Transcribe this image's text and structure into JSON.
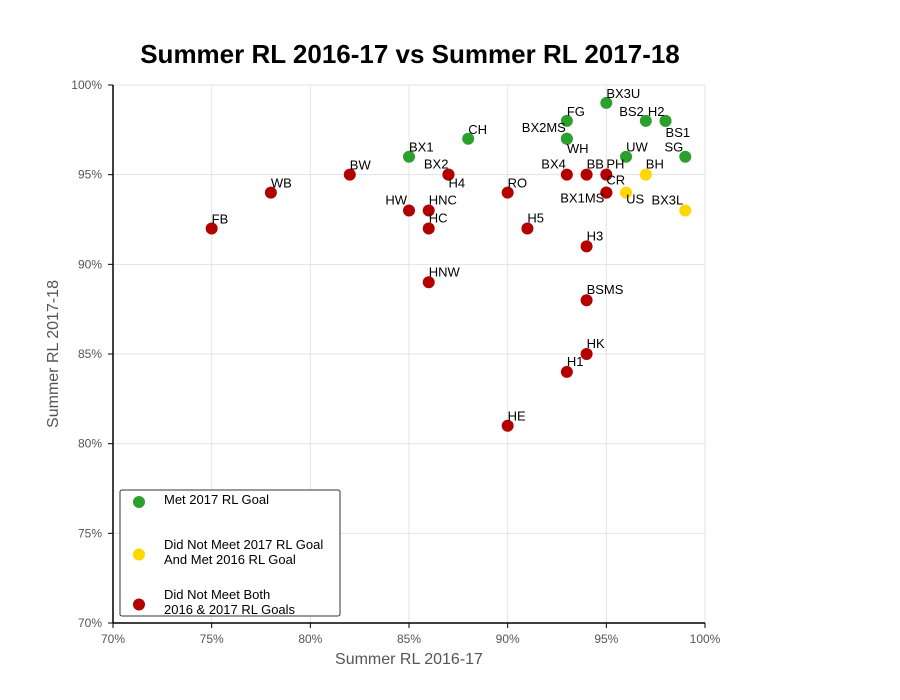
{
  "chart_data": {
    "type": "scatter",
    "title": "Summer RL 2016-17 vs Summer RL 2017-18",
    "xlabel": "Summer RL 2016-17",
    "ylabel": "Summer RL 2017-18",
    "xlim": [
      70,
      100
    ],
    "ylim": [
      70,
      100
    ],
    "x_ticks": [
      70,
      75,
      80,
      85,
      90,
      95,
      100
    ],
    "y_ticks": [
      70,
      75,
      80,
      85,
      90,
      95,
      100
    ],
    "x_tick_labels": [
      "70%",
      "75%",
      "80%",
      "85%",
      "90%",
      "95%",
      "100%"
    ],
    "y_tick_labels": [
      "70%",
      "75%",
      "80%",
      "85%",
      "90%",
      "95%",
      "100%"
    ],
    "grid": true,
    "legend_position": "bottom-left",
    "series": [
      {
        "name": "Met 2017 RL Goal",
        "label_lines": [
          "Met 2017 RL Goal"
        ],
        "color": "#2ca02c",
        "points": [
          {
            "label": "BX3U",
            "x": 95,
            "y": 99
          },
          {
            "label": "FG",
            "x": 93,
            "y": 98
          },
          {
            "label": "BS2",
            "x": 97,
            "y": 98
          },
          {
            "label": "H2",
            "x": 98,
            "y": 98
          },
          {
            "label": "BS1",
            "x": 98,
            "y": 98
          },
          {
            "label": "BX2MS",
            "x": 93,
            "y": 97
          },
          {
            "label": "CH",
            "x": 88,
            "y": 97
          },
          {
            "label": "WH",
            "x": 93,
            "y": 97
          },
          {
            "label": "BX1",
            "x": 85,
            "y": 96
          },
          {
            "label": "UW",
            "x": 96,
            "y": 96
          },
          {
            "label": "SG",
            "x": 99,
            "y": 96
          }
        ]
      },
      {
        "name": "Did Not Meet 2017 RL Goal And Met 2016 RL Goal",
        "label_lines": [
          "Did Not Meet 2017 RL Goal",
          "And Met 2016 RL Goal"
        ],
        "color": "#ffd700",
        "points": [
          {
            "label": "BH",
            "x": 97,
            "y": 95
          },
          {
            "label": "US",
            "x": 96,
            "y": 94
          },
          {
            "label": "BX3L",
            "x": 99,
            "y": 93
          }
        ]
      },
      {
        "name": "Did Not Meet Both 2016 & 2017 RL Goals",
        "label_lines": [
          "Did Not Meet Both",
          "2016 & 2017 RL Goals"
        ],
        "color": "#b30000",
        "points": [
          {
            "label": "BW",
            "x": 82,
            "y": 95
          },
          {
            "label": "BX2",
            "x": 87,
            "y": 95
          },
          {
            "label": "H4",
            "x": 87,
            "y": 95
          },
          {
            "label": "BX4",
            "x": 93,
            "y": 95
          },
          {
            "label": "BB",
            "x": 94,
            "y": 95
          },
          {
            "label": "PH",
            "x": 95,
            "y": 95
          },
          {
            "label": "WB",
            "x": 78,
            "y": 94
          },
          {
            "label": "RO",
            "x": 90,
            "y": 94
          },
          {
            "label": "CR",
            "x": 95,
            "y": 94
          },
          {
            "label": "BX1MS",
            "x": 95,
            "y": 94
          },
          {
            "label": "HW",
            "x": 85,
            "y": 93
          },
          {
            "label": "HNC",
            "x": 86,
            "y": 93
          },
          {
            "label": "FB",
            "x": 75,
            "y": 92
          },
          {
            "label": "HC",
            "x": 86,
            "y": 92
          },
          {
            "label": "H5",
            "x": 91,
            "y": 92
          },
          {
            "label": "H3",
            "x": 94,
            "y": 91
          },
          {
            "label": "HNW",
            "x": 86,
            "y": 89
          },
          {
            "label": "BSMS",
            "x": 94,
            "y": 88
          },
          {
            "label": "HK",
            "x": 94,
            "y": 85
          },
          {
            "label": "H1",
            "x": 93,
            "y": 84
          },
          {
            "label": "HE",
            "x": 90,
            "y": 81
          }
        ]
      }
    ]
  }
}
